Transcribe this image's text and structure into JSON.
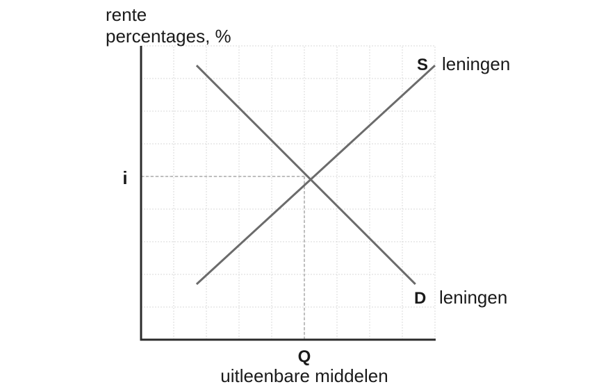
{
  "chart_data": {
    "type": "line",
    "ylabel_lines": [
      "rente",
      "percentages, %"
    ],
    "xlabel": "uitleenbare middelen",
    "equilibrium": {
      "x_label": "Q",
      "y_label": "i"
    },
    "series": [
      {
        "letter": "S",
        "name": "leningen",
        "points": [
          [
            1.7,
            1.7
          ],
          [
            9,
            8.4
          ]
        ]
      },
      {
        "letter": "D",
        "name": "leningen",
        "points": [
          [
            1.7,
            8.4
          ],
          [
            8.4,
            1.7
          ]
        ]
      }
    ],
    "equilibrium_point": [
      5,
      5
    ],
    "xlim": [
      0,
      9
    ],
    "ylim": [
      0,
      9
    ],
    "grid": true,
    "colors": {
      "line": "#6b6b6b",
      "axis": "#2b2b2b",
      "grid": "#d9d9d9",
      "guide": "#a8a8a8",
      "text": "#1a1a1a"
    }
  }
}
